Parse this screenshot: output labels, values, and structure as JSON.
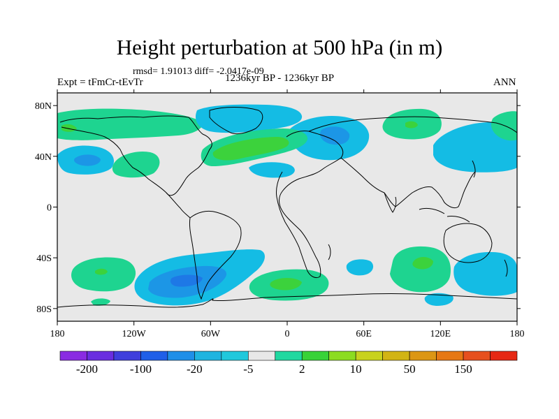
{
  "map": {
    "title": "Height perturbation at 500 hPa (in m)",
    "stats": "rmsd= 1.91013 diff= -2.0417e-09",
    "left_label": "Expt = tFmCr-tEvTr",
    "center_label": "1236kyr BP - 1236kyr BP",
    "right_label": "ANN",
    "x_ticks": [
      "180",
      "120W",
      "60W",
      "0",
      "60E",
      "120E",
      "180"
    ],
    "y_ticks": [
      "80N",
      "40N",
      "0",
      "40S",
      "80S"
    ],
    "colorbar": {
      "colors": [
        "#8a2be2",
        "#6a2ee0",
        "#3f3fdc",
        "#1f5fe8",
        "#1f8fe8",
        "#1fb4e0",
        "#20c8dc",
        "#e8e8e8",
        "#20d8a0",
        "#38d238",
        "#8cdc20",
        "#c8d21e",
        "#d2b414",
        "#dc9614",
        "#e67814",
        "#e6501e",
        "#e62814"
      ],
      "labels": [
        "-200",
        "-100",
        "-20",
        "-5",
        "2",
        "10",
        "50",
        "150"
      ]
    },
    "colors": {
      "background": "#e8e8e8",
      "green": "#1ed490",
      "green_deep": "#3cd23c",
      "cyan": "#14bce4",
      "blue": "#1c96e6",
      "blue_deep": "#1e78e6",
      "coast": "#000000"
    }
  }
}
